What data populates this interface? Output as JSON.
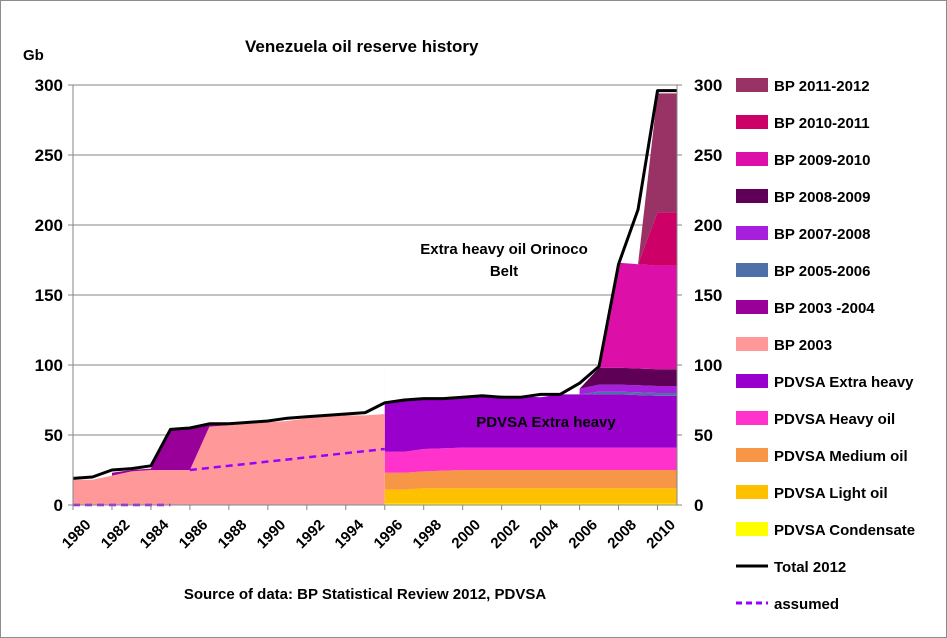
{
  "chart_data": {
    "type": "area",
    "title": "Venezuela oil reserve history",
    "ylabel": "Gb",
    "source": "Source of data: BP Statistical Review 2012, PDVSA",
    "ylim": [
      0,
      300
    ],
    "xlim": [
      1980,
      2011
    ],
    "x_ticks": [
      "1980",
      "1982",
      "1984",
      "1986",
      "1988",
      "1990",
      "1992",
      "1994",
      "1996",
      "1998",
      "2000",
      "2002",
      "2004",
      "2006",
      "2008",
      "2010"
    ],
    "y_ticks": [
      "0",
      "50",
      "100",
      "150",
      "200",
      "250",
      "300"
    ],
    "y_ticks_right": [
      "0",
      "50",
      "100",
      "150",
      "200",
      "250",
      "300"
    ],
    "annotations": {
      "orinoco_line1": "Extra heavy oil Orinoco",
      "orinoco_line2": "Belt",
      "extra_heavy": "PDVSA Extra heavy"
    },
    "legend_position": "right",
    "grid": true,
    "stacked_series": [
      {
        "name": "PDVSA Condensate",
        "color": "#ffff00",
        "x": [
          1996,
          2011
        ],
        "values": [
          1,
          1
        ]
      },
      {
        "name": "PDVSA Light oil",
        "color": "#ffc000",
        "x": [
          1996,
          1997,
          1998,
          2000,
          2002,
          2004,
          2006,
          2008,
          2010,
          2011
        ],
        "values": [
          10,
          10,
          11,
          11,
          11,
          11,
          11,
          11,
          11,
          11
        ]
      },
      {
        "name": "PDVSA Medium oil",
        "color": "#f79646",
        "x": [
          1996,
          1997,
          1998,
          2000,
          2002,
          2004,
          2006,
          2008,
          2010,
          2011
        ],
        "values": [
          12,
          12,
          12,
          13,
          13,
          13,
          13,
          13,
          13,
          13
        ]
      },
      {
        "name": "PDVSA Heavy oil",
        "color": "#ff33cc",
        "x": [
          1996,
          1997,
          1998,
          2000,
          2002,
          2004,
          2006,
          2008,
          2010,
          2011
        ],
        "values": [
          15,
          15,
          16,
          16,
          16,
          16,
          16,
          16,
          16,
          16
        ]
      },
      {
        "name": "PDVSA Extra heavy",
        "color": "#9900cc",
        "x": [
          1996,
          1997,
          1998,
          2000,
          2002,
          2004,
          2005,
          2006,
          2007,
          2008,
          2010,
          2011
        ],
        "values": [
          34,
          37,
          36,
          36,
          37,
          36,
          38,
          38,
          38,
          38,
          37,
          37
        ]
      },
      {
        "name": "BP 2003",
        "color": "#ff9999",
        "x": [
          1980,
          1981,
          1982,
          1983,
          1984,
          1985,
          1986,
          1987,
          1988,
          1989,
          1990,
          1991,
          1992,
          1993,
          1994,
          1995,
          1996
        ],
        "values": [
          18,
          18,
          21,
          24,
          25,
          25,
          25,
          56,
          57,
          58,
          59,
          60,
          62,
          63,
          64,
          64,
          65
        ]
      },
      {
        "name": "BP 2003 -2004",
        "color": "#990099",
        "x": [
          1982,
          1983,
          1984,
          1985,
          1986,
          1987,
          1988
        ],
        "values": [
          2,
          1,
          1,
          29,
          29,
          2,
          0
        ]
      },
      {
        "name": "BP 2005-2006",
        "color": "#4f6fa8",
        "x": [
          2006,
          2007,
          2008,
          2010,
          2011
        ],
        "values": [
          0,
          2,
          2,
          2,
          2
        ]
      },
      {
        "name": "BP 2007-2008",
        "color": "#a51fdc",
        "x": [
          2006,
          2007,
          2008,
          2010,
          2011
        ],
        "values": [
          4,
          5,
          5,
          5,
          5
        ]
      },
      {
        "name": "BP 2008-2009",
        "color": "#5e0055",
        "x": [
          2006,
          2007,
          2008,
          2010,
          2011
        ],
        "values": [
          0,
          12,
          12,
          12,
          12
        ]
      },
      {
        "name": "BP 2009-2010",
        "color": "#dc0fa8",
        "x": [
          2007,
          2008,
          2010,
          2011
        ],
        "values": [
          0,
          75,
          74,
          74
        ]
      },
      {
        "name": "BP 2010-2011",
        "color": "#cc0066",
        "x": [
          2009,
          2010,
          2011
        ],
        "values": [
          0,
          38,
          38
        ]
      },
      {
        "name": "BP 2011-2012",
        "color": "#993366",
        "x": [
          2009,
          2010,
          2011
        ],
        "values": [
          0,
          85,
          85
        ]
      }
    ],
    "lines": [
      {
        "name": "Total 2012",
        "color": "#000000",
        "style": "solid",
        "x": [
          1980,
          1981,
          1982,
          1983,
          1984,
          1985,
          1986,
          1987,
          1988,
          1989,
          1990,
          1991,
          1992,
          1993,
          1994,
          1995,
          1996,
          1997,
          1998,
          1999,
          2000,
          2001,
          2002,
          2003,
          2004,
          2005,
          2006,
          2007,
          2008,
          2009,
          2010,
          2011
        ],
        "values": [
          19,
          20,
          25,
          26,
          28,
          54,
          55,
          58,
          58,
          59,
          60,
          62,
          63,
          64,
          65,
          66,
          73,
          75,
          76,
          76,
          77,
          78,
          77,
          77,
          79,
          79,
          87,
          99,
          172,
          211,
          296,
          296
        ]
      },
      {
        "name": "assumed",
        "color": "#9900ff",
        "style": "dashed",
        "x": [
          1986,
          1996
        ],
        "values": [
          25,
          40
        ]
      },
      {
        "name": "assumed",
        "color": "#9900ff",
        "style": "dashed",
        "x": [
          1980,
          1985
        ],
        "values": [
          0,
          0
        ]
      }
    ],
    "legend": [
      {
        "label": "BP 2011-2012",
        "color": "#993366",
        "kind": "box"
      },
      {
        "label": "BP 2010-2011",
        "color": "#cc0066",
        "kind": "box"
      },
      {
        "label": "BP 2009-2010",
        "color": "#dc0fa8",
        "kind": "box"
      },
      {
        "label": "BP 2008-2009",
        "color": "#5e0055",
        "kind": "box"
      },
      {
        "label": "BP 2007-2008",
        "color": "#a51fdc",
        "kind": "box"
      },
      {
        "label": "BP 2005-2006",
        "color": "#4f6fa8",
        "kind": "box"
      },
      {
        "label": "BP 2003 -2004",
        "color": "#990099",
        "kind": "box"
      },
      {
        "label": "BP 2003",
        "color": "#ff9999",
        "kind": "box"
      },
      {
        "label": "PDVSA Extra heavy",
        "color": "#9900cc",
        "kind": "box"
      },
      {
        "label": "PDVSA Heavy oil",
        "color": "#ff33cc",
        "kind": "box"
      },
      {
        "label": "PDVSA Medium oil",
        "color": "#f79646",
        "kind": "box"
      },
      {
        "label": "PDVSA Light oil",
        "color": "#ffc000",
        "kind": "box"
      },
      {
        "label": "PDVSA Condensate",
        "color": "#ffff00",
        "kind": "box"
      },
      {
        "label": "Total 2012",
        "color": "#000000",
        "kind": "line"
      },
      {
        "label": "assumed",
        "color": "#9900ff",
        "kind": "dash"
      }
    ]
  }
}
